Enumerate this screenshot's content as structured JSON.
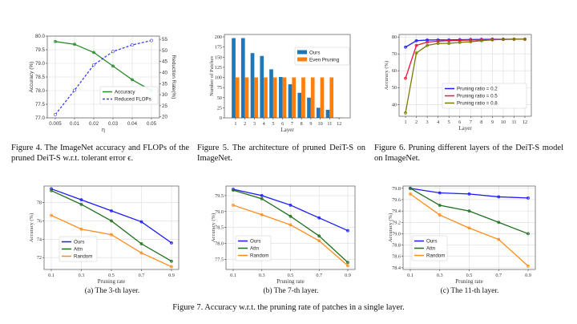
{
  "colors": {
    "blue": "#1a1aff",
    "green": "#1e6e1e",
    "orange": "#ff8c1a",
    "bar_blue": "#1f77b4",
    "bar_orange": "#ff7f0e",
    "red": "#e8173c",
    "olive": "#7a7a00"
  },
  "captions": {
    "fig4": "Figure 4. The ImageNet accuracy and FLOPs of the pruned DeiT-S w.r.t. tolerant error ϵ.",
    "fig5": "Figure 5. The architecture of pruned DeiT-S on ImageNet.",
    "fig6": "Figure 6. Pruning different layers of the DeiT-S model on ImageNet.",
    "fig7": "Figure 7. Accuracy w.r.t. the pruning rate of patches in a single layer.",
    "fig7a": "(a) The 3-th layer.",
    "fig7b": "(b) The 7-th layer.",
    "fig7c": "(c) The 11-th layer."
  },
  "chart_data": [
    {
      "type": "line",
      "categories": [
        "0.005",
        "0.01",
        "0.02",
        "0.03",
        "0.04",
        "0.05"
      ],
      "xlabel": "η",
      "ylabel": "Accuracy (%)",
      "ylabel_right": "Reduction Rate(%)",
      "ylim": [
        77.0,
        80.0
      ],
      "yticks": [
        "77.0",
        "77.5",
        "78.0",
        "78.5",
        "79.0",
        "79.5",
        "80.0"
      ],
      "ylim_right": [
        19.5,
        56.5
      ],
      "yticks_right": [
        "20",
        "25",
        "30",
        "35",
        "40",
        "45",
        "50",
        "55"
      ],
      "grid": true,
      "legend": "lower-right",
      "series": [
        {
          "name": "Accuracy",
          "axis": "left",
          "values": [
            79.8,
            79.7,
            79.4,
            78.9,
            78.4,
            78.0
          ],
          "color": "#2a8a2a",
          "style": "solid"
        },
        {
          "name": "Reduced FLOPs",
          "axis": "right",
          "values": [
            21,
            32,
            43.5,
            49.5,
            52.5,
            54.5
          ],
          "color": "#3a3aff",
          "style": "dashed"
        }
      ]
    },
    {
      "type": "bar",
      "categories": [
        "1",
        "2",
        "3",
        "4",
        "5",
        "6",
        "7",
        "8",
        "9",
        "10",
        "11",
        "12"
      ],
      "xlabel": "Layer",
      "ylabel": "Number of Patches",
      "ylim": [
        0,
        206
      ],
      "yticks": [
        "0",
        "25",
        "50",
        "75",
        "100",
        "125",
        "150",
        "175",
        "200"
      ],
      "grid": false,
      "legend": "upper-right",
      "series": [
        {
          "name": "Ours",
          "values": [
            197,
            197,
            160,
            153,
            120,
            101,
            83,
            62,
            50,
            25,
            20,
            1
          ],
          "color": "#1f77b4"
        },
        {
          "name": "Even Pruning",
          "values": [
            100,
            100,
            100,
            100,
            100,
            100,
            100,
            100,
            100,
            100,
            100,
            1
          ],
          "color": "#ff7f0e"
        }
      ]
    },
    {
      "type": "line",
      "categories": [
        "1",
        "2",
        "3",
        "4",
        "5",
        "6",
        "7",
        "8",
        "9",
        "10",
        "11",
        "12"
      ],
      "xlabel": "Layer",
      "ylabel": "Accuracy (%)",
      "ylim": [
        33,
        81.5
      ],
      "yticks": [
        "40",
        "50",
        "60",
        "70",
        "80"
      ],
      "grid": true,
      "legend": "lower-right",
      "series": [
        {
          "name": "Pruning ratio = 0.2",
          "values": [
            74,
            77.8,
            78.2,
            78.3,
            78.3,
            78.4,
            78.5,
            78.6,
            78.7,
            78.7,
            78.7,
            78.7
          ],
          "color": "#1a1aff"
        },
        {
          "name": "Pruning ratio = 0.5",
          "values": [
            55.5,
            75,
            77,
            77.5,
            77.8,
            78,
            78.2,
            78.3,
            78.5,
            78.6,
            78.7,
            78.7
          ],
          "color": "#e8173c"
        },
        {
          "name": "Pruning ratio = 0.8",
          "values": [
            35,
            70.5,
            75,
            76.2,
            76.2,
            76.8,
            77.2,
            77.8,
            78.3,
            78.6,
            78.7,
            78.7
          ],
          "color": "#7a7a00"
        }
      ]
    },
    {
      "type": "line",
      "categories": [
        "0.1",
        "0.3",
        "0.5",
        "0.7",
        "0.9"
      ],
      "xlabel": "Pruning rate",
      "ylabel": "Accuracy (%)",
      "ylim": [
        70.7,
        79.8
      ],
      "yticks": [
        "72",
        "74",
        "76",
        "78"
      ],
      "grid": true,
      "legend": "lower-left",
      "series": [
        {
          "name": "Ours",
          "values": [
            79.5,
            78.3,
            77.1,
            75.9,
            73.6
          ],
          "color": "#1a1aff"
        },
        {
          "name": "Attn",
          "values": [
            79.3,
            77.8,
            76.0,
            73.5,
            71.6
          ],
          "color": "#1e6e1e"
        },
        {
          "name": "Random",
          "values": [
            76.6,
            75.1,
            74.5,
            72.5,
            71.0
          ],
          "color": "#ff8c1a"
        }
      ]
    },
    {
      "type": "line",
      "categories": [
        "0.1",
        "0.3",
        "0.5",
        "0.7",
        "0.9"
      ],
      "xlabel": "Pruning rate",
      "ylabel": "Accuracy (%)",
      "ylim": [
        77.18,
        79.8
      ],
      "yticks": [
        "77.5",
        "78.0",
        "78.5",
        "79.0",
        "79.5"
      ],
      "grid": true,
      "legend": "lower-left",
      "series": [
        {
          "name": "Ours",
          "values": [
            79.7,
            79.5,
            79.2,
            78.8,
            78.4
          ],
          "color": "#1a1aff"
        },
        {
          "name": "Attn",
          "values": [
            79.67,
            79.4,
            78.85,
            78.23,
            77.4
          ],
          "color": "#1e6e1e"
        },
        {
          "name": "Random",
          "values": [
            79.2,
            78.9,
            78.58,
            78.08,
            77.3
          ],
          "color": "#ff8c1a"
        }
      ]
    },
    {
      "type": "line",
      "categories": [
        "0.1",
        "0.3",
        "0.5",
        "0.7",
        "0.9"
      ],
      "xlabel": "Pruning rate",
      "ylabel": "Accuracy (%)",
      "ylim": [
        78.37,
        79.84
      ],
      "yticks": [
        "78.4",
        "78.6",
        "78.8",
        "79.0",
        "79.2",
        "79.4",
        "79.6",
        "79.8"
      ],
      "grid": true,
      "legend": "lower-left",
      "series": [
        {
          "name": "Ours",
          "values": [
            79.8,
            79.72,
            79.7,
            79.65,
            79.63
          ],
          "color": "#1a1aff"
        },
        {
          "name": "Attn",
          "values": [
            79.8,
            79.5,
            79.4,
            79.2,
            79.0
          ],
          "color": "#1e6e1e"
        },
        {
          "name": "Random",
          "values": [
            79.7,
            79.33,
            79.1,
            78.9,
            78.43
          ],
          "color": "#ff8c1a"
        }
      ]
    }
  ]
}
